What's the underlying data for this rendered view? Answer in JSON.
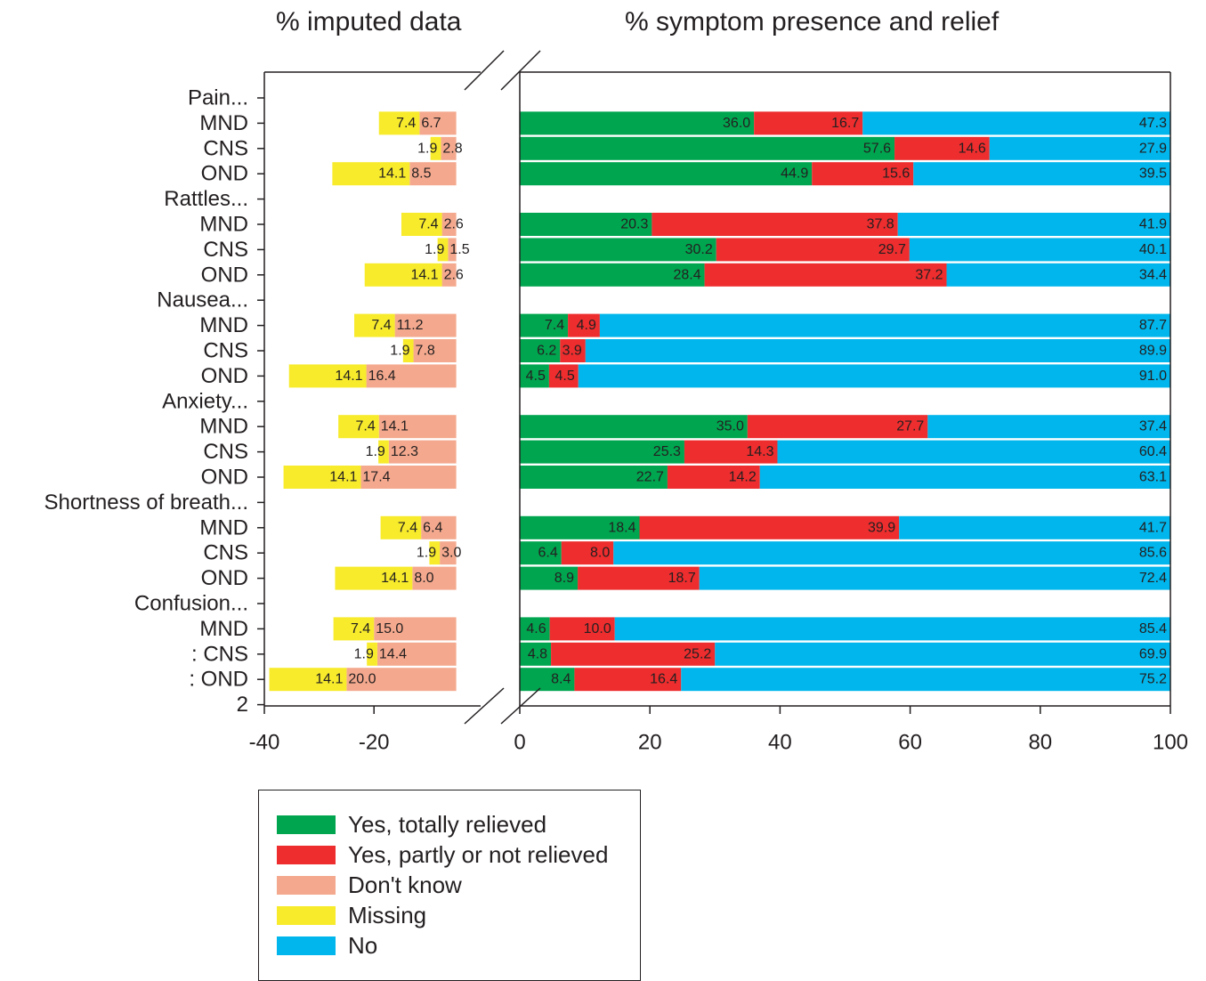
{
  "titles": {
    "left": "% imputed data",
    "right": "% symptom presence and relief"
  },
  "colors": {
    "totally_relieved": "#00a54f",
    "partly_relieved": "#ed2d2e",
    "dont_know": "#f4a98e",
    "missing": "#f7eb2b",
    "no": "#00b6ec",
    "axis": "#231f20"
  },
  "legend": [
    {
      "key": "totally_relieved",
      "label": "Yes, totally relieved"
    },
    {
      "key": "partly_relieved",
      "label": "Yes, partly or not relieved"
    },
    {
      "key": "dont_know",
      "label": "Don't know"
    },
    {
      "key": "missing",
      "label": "Missing"
    },
    {
      "key": "no",
      "label": "No"
    }
  ],
  "chart_data": {
    "type": "bar",
    "orientation": "horizontal",
    "stacked": true,
    "x_ticks": [
      "-40",
      "-20",
      "0",
      "20",
      "40",
      "60",
      "80",
      "100"
    ],
    "left_panel_xlim": [
      -40,
      -5
    ],
    "right_panel_xlim": [
      0,
      100
    ],
    "rows": [
      {
        "label": "Pain...",
        "header": true
      },
      {
        "label": "MND",
        "missing": 7.4,
        "dont_know": 6.7,
        "totally_relieved": 36.0,
        "partly_relieved": 16.7,
        "no": 47.3
      },
      {
        "label": "CNS",
        "missing": 1.9,
        "dont_know": 2.8,
        "totally_relieved": 57.6,
        "partly_relieved": 14.6,
        "no": 27.9
      },
      {
        "label": "OND",
        "missing": 14.1,
        "dont_know": 8.5,
        "totally_relieved": 44.9,
        "partly_relieved": 15.6,
        "no": 39.5
      },
      {
        "label": "Rattles...",
        "header": true
      },
      {
        "label": "MND",
        "missing": 7.4,
        "dont_know": 2.6,
        "totally_relieved": 20.3,
        "partly_relieved": 37.8,
        "no": 41.9
      },
      {
        "label": "CNS",
        "missing": 1.9,
        "dont_know": 1.5,
        "totally_relieved": 30.2,
        "partly_relieved": 29.7,
        "no": 40.1
      },
      {
        "label": "OND",
        "missing": 14.1,
        "dont_know": 2.6,
        "totally_relieved": 28.4,
        "partly_relieved": 37.2,
        "no": 34.4
      },
      {
        "label": "Nausea...",
        "header": true
      },
      {
        "label": "MND",
        "missing": 7.4,
        "dont_know": 11.2,
        "totally_relieved": 7.4,
        "partly_relieved": 4.9,
        "no": 87.7
      },
      {
        "label": "CNS",
        "missing": 1.9,
        "dont_know": 7.8,
        "totally_relieved": 6.2,
        "partly_relieved": 3.9,
        "no": 89.9
      },
      {
        "label": "OND",
        "missing": 14.1,
        "dont_know": 16.4,
        "totally_relieved": 4.5,
        "partly_relieved": 4.5,
        "no": 91.0
      },
      {
        "label": "Anxiety...",
        "header": true
      },
      {
        "label": "MND",
        "missing": 7.4,
        "dont_know": 14.1,
        "totally_relieved": 35.0,
        "partly_relieved": 27.7,
        "no": 37.4
      },
      {
        "label": "CNS",
        "missing": 1.9,
        "dont_know": 12.3,
        "totally_relieved": 25.3,
        "partly_relieved": 14.3,
        "no": 60.4
      },
      {
        "label": "OND",
        "missing": 14.1,
        "dont_know": 17.4,
        "totally_relieved": 22.7,
        "partly_relieved": 14.2,
        "no": 63.1
      },
      {
        "label": "Shortness of breath...",
        "header": true
      },
      {
        "label": "MND",
        "missing": 7.4,
        "dont_know": 6.4,
        "totally_relieved": 18.4,
        "partly_relieved": 39.9,
        "no": 41.7
      },
      {
        "label": "CNS",
        "missing": 1.9,
        "dont_know": 3.0,
        "totally_relieved": 6.4,
        "partly_relieved": 8.0,
        "no": 85.6
      },
      {
        "label": "OND",
        "missing": 14.1,
        "dont_know": 8.0,
        "totally_relieved": 8.9,
        "partly_relieved": 18.7,
        "no": 72.4
      },
      {
        "label": "Confusion...",
        "header": true
      },
      {
        "label": "MND",
        "missing": 7.4,
        "dont_know": 15.0,
        "totally_relieved": 4.6,
        "partly_relieved": 10.0,
        "no": 85.4
      },
      {
        "label": ": CNS",
        "missing": 1.9,
        "dont_know": 14.4,
        "totally_relieved": 4.8,
        "partly_relieved": 25.2,
        "no": 69.9
      },
      {
        "label": ": OND",
        "missing": 14.1,
        "dont_know": 20.0,
        "totally_relieved": 8.4,
        "partly_relieved": 16.4,
        "no": 75.2
      },
      {
        "label": "2",
        "header": true
      }
    ]
  }
}
